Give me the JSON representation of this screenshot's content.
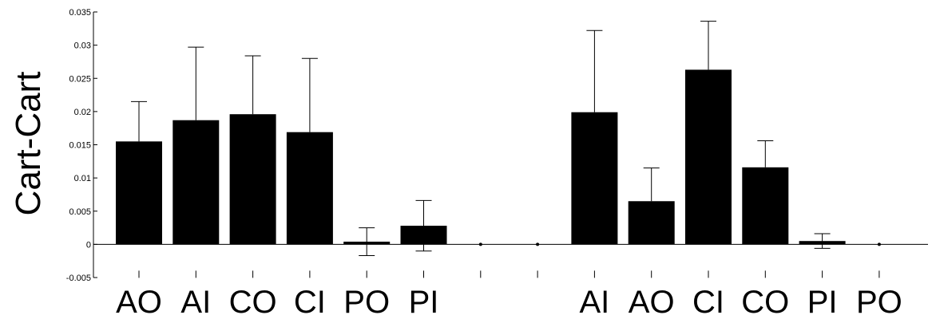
{
  "chart_data": {
    "type": "bar",
    "ylabel": "Cart-Cart",
    "ylim": [
      -0.005,
      0.035
    ],
    "yticks": [
      -0.005,
      0,
      0.005,
      0.01,
      0.015,
      0.02,
      0.025,
      0.03,
      0.035
    ],
    "ytick_labels": [
      "-0.005",
      "0",
      "0.005",
      "0.01",
      "0.015",
      "0.02",
      "0.025",
      "0.03",
      "0.035"
    ],
    "grid": false,
    "bar_color": "#000000",
    "categories": [
      "AO",
      "AI",
      "CO",
      "CI",
      "PO",
      "PI",
      "",
      "",
      "AI",
      "AO",
      "CI",
      "CO",
      "PI",
      "PO"
    ],
    "values": [
      0.0155,
      0.0187,
      0.0196,
      0.0169,
      0.0004,
      0.0028,
      0,
      0,
      0.0199,
      0.0065,
      0.0263,
      0.0116,
      0.0005,
      0
    ],
    "error_upper": [
      0.0215,
      0.0297,
      0.0284,
      0.028,
      0.0025,
      0.0066,
      0,
      0,
      0.0322,
      0.0115,
      0.0336,
      0.0156,
      0.0016,
      0
    ],
    "error_lower": [
      null,
      null,
      null,
      null,
      -0.0017,
      -0.001,
      null,
      null,
      null,
      null,
      null,
      null,
      -0.0006,
      null
    ]
  }
}
